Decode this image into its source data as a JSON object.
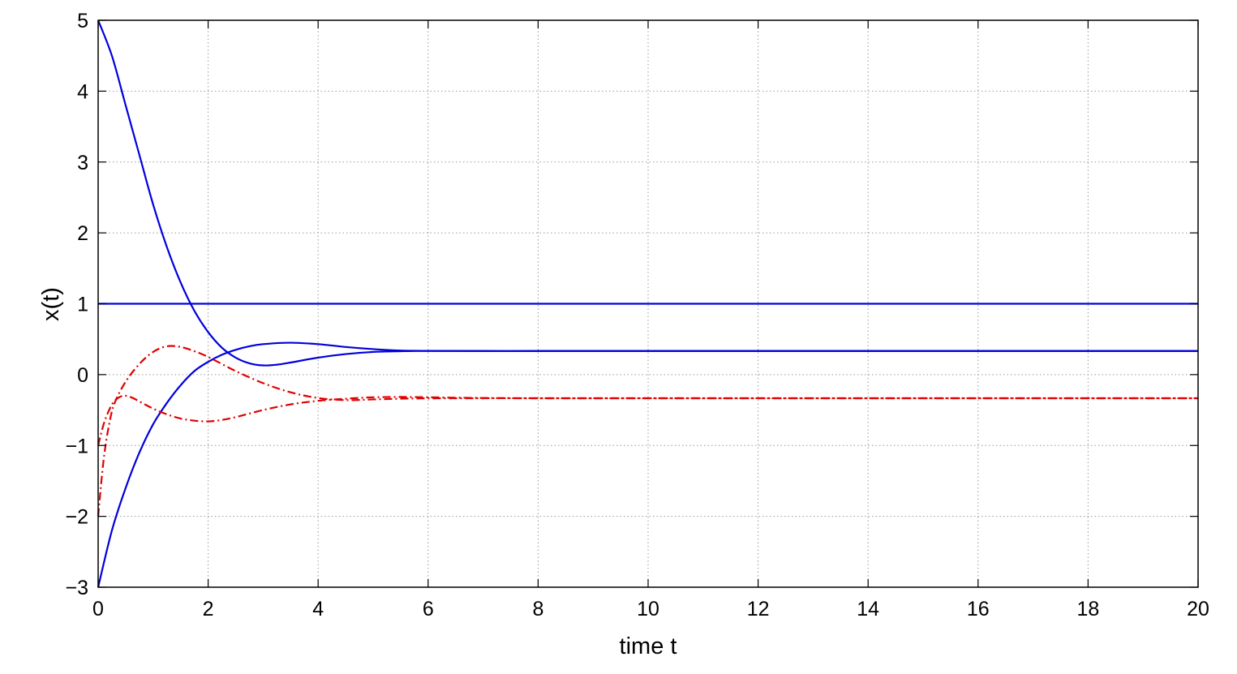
{
  "chart_data": {
    "type": "line",
    "title": "",
    "xlabel": "time t",
    "ylabel": "x(t)",
    "xlim": [
      0,
      20
    ],
    "ylim": [
      -3,
      5
    ],
    "xticks": [
      0,
      2,
      4,
      6,
      8,
      10,
      12,
      14,
      16,
      18,
      20
    ],
    "yticks": [
      -3,
      -2,
      -1,
      0,
      1,
      2,
      3,
      4,
      5
    ],
    "xtick_labels": [
      "0",
      "2",
      "4",
      "6",
      "8",
      "10",
      "12",
      "14",
      "16",
      "18",
      "20"
    ],
    "ytick_labels": [
      "−3",
      "−2",
      "−1",
      "0",
      "1",
      "2",
      "3",
      "4",
      "5"
    ],
    "grid": true,
    "series": [
      {
        "color": "#0000dd",
        "style": "solid",
        "x": [
          0,
          20
        ],
        "y": [
          1,
          1
        ]
      },
      {
        "color": "#0000dd",
        "style": "solid",
        "x": [
          0,
          0.25,
          0.5,
          0.75,
          1,
          1.25,
          1.5,
          1.75,
          2,
          2.25,
          2.5,
          2.75,
          3,
          3.25,
          3.5,
          4,
          4.5,
          5,
          5.5,
          6,
          7,
          8,
          10,
          12,
          14,
          16,
          18,
          20
        ],
        "y": [
          5,
          4.5,
          3.8,
          3.1,
          2.4,
          1.8,
          1.3,
          0.9,
          0.6,
          0.38,
          0.24,
          0.16,
          0.13,
          0.14,
          0.17,
          0.24,
          0.29,
          0.32,
          0.33,
          0.335,
          0.333,
          0.333,
          0.333,
          0.333,
          0.333,
          0.333,
          0.333,
          0.333
        ]
      },
      {
        "color": "#0000dd",
        "style": "solid",
        "x": [
          0,
          0.25,
          0.5,
          0.75,
          1,
          1.25,
          1.5,
          1.75,
          2,
          2.25,
          2.5,
          2.75,
          3,
          3.5,
          4,
          4.5,
          5,
          5.5,
          6,
          7,
          8,
          10,
          12,
          14,
          16,
          18,
          20
        ],
        "y": [
          -3,
          -2.2,
          -1.6,
          -1.1,
          -0.7,
          -0.4,
          -0.15,
          0.05,
          0.18,
          0.28,
          0.35,
          0.4,
          0.43,
          0.45,
          0.43,
          0.39,
          0.36,
          0.34,
          0.335,
          0.333,
          0.333,
          0.333,
          0.333,
          0.333,
          0.333,
          0.333,
          0.333
        ]
      },
      {
        "color": "#e00000",
        "style": "dashdot",
        "x": [
          0,
          0.1,
          0.2,
          0.3,
          0.5,
          0.75,
          1,
          1.25,
          1.5,
          1.75,
          2,
          2.5,
          3,
          3.5,
          4,
          4.5,
          5,
          5.5,
          6,
          7,
          8,
          10,
          12,
          14,
          16,
          18,
          20
        ],
        "y": [
          -2,
          -1.2,
          -0.7,
          -0.4,
          -0.1,
          0.15,
          0.32,
          0.4,
          0.39,
          0.33,
          0.25,
          0.05,
          -0.12,
          -0.25,
          -0.33,
          -0.36,
          -0.35,
          -0.34,
          -0.335,
          -0.333,
          -0.333,
          -0.333,
          -0.333,
          -0.333,
          -0.333,
          -0.333,
          -0.333
        ]
      },
      {
        "color": "#e00000",
        "style": "dashdot",
        "x": [
          0,
          0.1,
          0.2,
          0.3,
          0.45,
          0.6,
          0.8,
          1,
          1.25,
          1.5,
          1.75,
          2,
          2.25,
          2.5,
          3,
          3.5,
          4,
          4.5,
          5,
          5.5,
          6,
          7,
          8,
          10,
          12,
          14,
          16,
          18,
          20
        ],
        "y": [
          -1,
          -0.7,
          -0.5,
          -0.37,
          -0.3,
          -0.32,
          -0.4,
          -0.48,
          -0.56,
          -0.62,
          -0.65,
          -0.66,
          -0.64,
          -0.6,
          -0.5,
          -0.42,
          -0.37,
          -0.34,
          -0.32,
          -0.315,
          -0.32,
          -0.33,
          -0.333,
          -0.333,
          -0.333,
          -0.333,
          -0.333,
          -0.333,
          -0.333
        ]
      }
    ]
  }
}
